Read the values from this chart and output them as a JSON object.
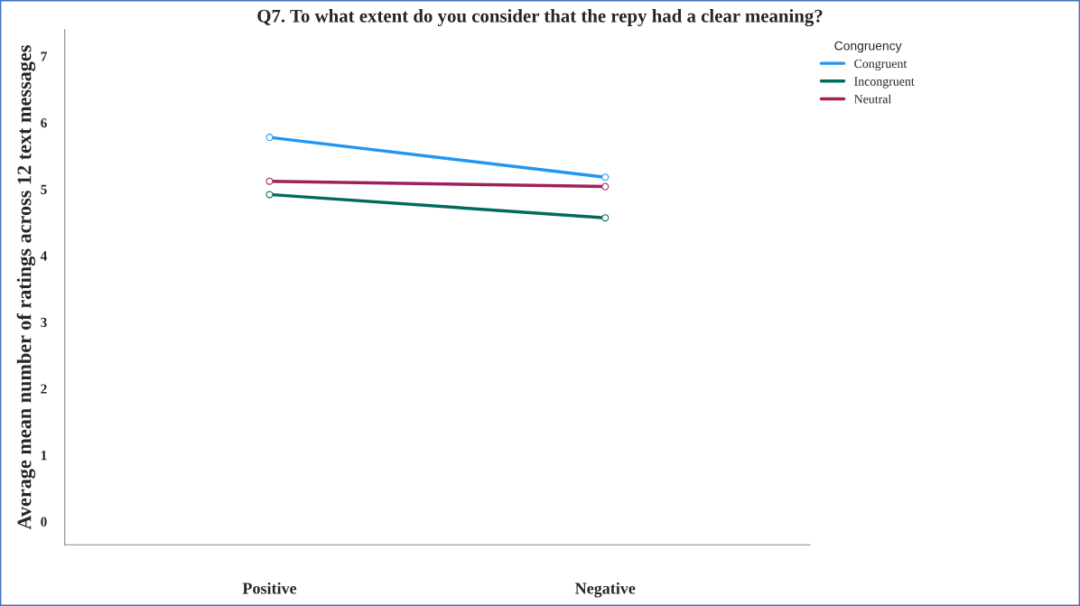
{
  "chart_data": {
    "type": "line",
    "title": "Q7. To what extent do you consider that the repy had a clear meaning?",
    "ylabel": "Average mean number of ratings across 12 text messages",
    "legend_title": "Congruency",
    "categories": [
      "Positive",
      "Negative"
    ],
    "series": [
      {
        "name": "Congruent",
        "color": "#2196f3",
        "values": [
          5.78,
          5.18
        ]
      },
      {
        "name": "Incongruent",
        "color": "#006b5b",
        "values": [
          4.92,
          4.57
        ]
      },
      {
        "name": "Neutral",
        "color": "#a0205a",
        "values": [
          5.12,
          5.04
        ]
      }
    ],
    "ylim": [
      -0.35,
      7.4
    ],
    "yticks": [
      0,
      1,
      2,
      3,
      4,
      5,
      6,
      7
    ],
    "grid": false,
    "legend": "top right",
    "marker": "circle",
    "line_style": "solid"
  }
}
